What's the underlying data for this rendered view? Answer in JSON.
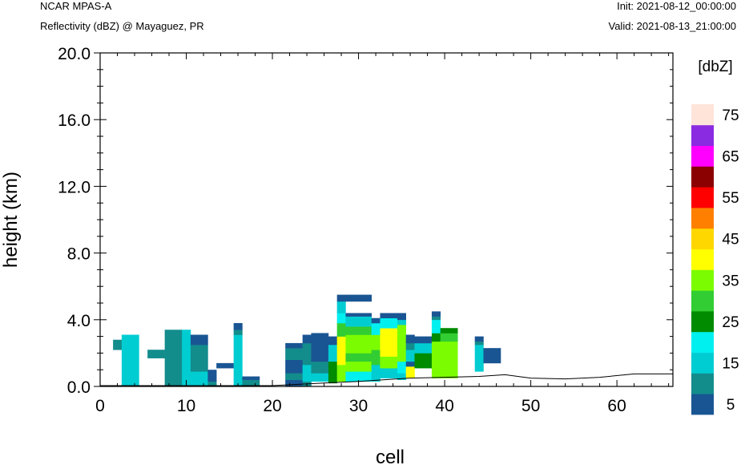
{
  "header": {
    "model": "NCAR MPAS-A",
    "field": "Reflectivity (dBZ) @ Mayaguez, PR",
    "init": "Init: 2021-08-12_00:00:00",
    "valid": "Valid: 2021-08-13_21:00:00"
  },
  "chart_data": {
    "type": "heatmap",
    "xlabel": "cell",
    "ylabel": "height (km)",
    "xlim": [
      0,
      66.5
    ],
    "ylim": [
      0,
      20
    ],
    "x_ticks": [
      "0",
      "10",
      "20",
      "30",
      "40",
      "50",
      "60"
    ],
    "y_ticks": [
      "0.0",
      "4.0",
      "8.0",
      "12.0",
      "16.0",
      "20.0"
    ],
    "colorbar": {
      "title": "[dbZ]",
      "levels": [
        5,
        10,
        15,
        20,
        25,
        30,
        35,
        40,
        45,
        50,
        55,
        60,
        65,
        70,
        75
      ],
      "colors": [
        "#1a5593",
        "#138c8c",
        "#00cdd2",
        "#00f0f0",
        "#008b00",
        "#32cd32",
        "#7cfc00",
        "#ffff00",
        "#ffd700",
        "#ff8000",
        "#ff0000",
        "#8b0000",
        "#ff00ff",
        "#8a2be2",
        "#ffe4da"
      ],
      "labels": [
        "5",
        "15",
        "25",
        "35",
        "45",
        "55",
        "65",
        "75"
      ]
    },
    "cells": [
      [
        1.5,
        2.5,
        2.2,
        2.8,
        1
      ],
      [
        2.5,
        4.5,
        0,
        3.1,
        2
      ],
      [
        5.5,
        7.5,
        1.7,
        2.2,
        1
      ],
      [
        7.5,
        9.5,
        0,
        3.1,
        1
      ],
      [
        7.5,
        9.5,
        3.1,
        3.4,
        1
      ],
      [
        9.5,
        10.5,
        0,
        3.4,
        2
      ],
      [
        10.5,
        12.5,
        0,
        0.9,
        2
      ],
      [
        10.5,
        12.5,
        0.9,
        2.5,
        1
      ],
      [
        10.5,
        12.5,
        2.5,
        3.1,
        0
      ],
      [
        12.5,
        13.5,
        0,
        0.3,
        1
      ],
      [
        12.5,
        13.5,
        0.3,
        1.0,
        0
      ],
      [
        13.5,
        15.5,
        1.1,
        1.4,
        0
      ],
      [
        15.5,
        16.5,
        0,
        3.1,
        2
      ],
      [
        15.5,
        16.5,
        3.1,
        3.4,
        1
      ],
      [
        15.5,
        16.5,
        3.4,
        3.8,
        0
      ],
      [
        16.5,
        18.5,
        0,
        0.4,
        1
      ],
      [
        16.5,
        18.5,
        0.4,
        0.6,
        0
      ],
      [
        21.5,
        23.5,
        0,
        0.4,
        0
      ],
      [
        21.5,
        23.5,
        0.4,
        0.8,
        1
      ],
      [
        21.5,
        23.5,
        0.8,
        1.6,
        0
      ],
      [
        21.5,
        23.5,
        1.6,
        2.3,
        1
      ],
      [
        21.5,
        23.5,
        2.3,
        2.6,
        0
      ],
      [
        23.5,
        24.5,
        0,
        0.3,
        1
      ],
      [
        23.5,
        24.5,
        0.3,
        1.3,
        2
      ],
      [
        23.5,
        24.5,
        1.3,
        2.6,
        1
      ],
      [
        23.5,
        24.5,
        2.6,
        3.1,
        0
      ],
      [
        24.5,
        26.5,
        0.3,
        0.8,
        2
      ],
      [
        24.5,
        26.5,
        0.8,
        1.5,
        1
      ],
      [
        24.5,
        26.5,
        1.5,
        3.2,
        0
      ],
      [
        26.5,
        27.5,
        0.2,
        1.5,
        4
      ],
      [
        26.5,
        27.5,
        1.5,
        2.5,
        2
      ],
      [
        26.5,
        27.5,
        2.5,
        3.0,
        0
      ],
      [
        27.5,
        28.5,
        0.3,
        1.3,
        6
      ],
      [
        27.5,
        28.5,
        1.3,
        3.0,
        7
      ],
      [
        27.5,
        28.5,
        3.0,
        3.8,
        5
      ],
      [
        27.5,
        28.5,
        3.8,
        4.4,
        3
      ],
      [
        27.5,
        28.5,
        4.4,
        5.1,
        2
      ],
      [
        27.5,
        28.5,
        5.1,
        5.5,
        0
      ],
      [
        28.5,
        31.5,
        0.3,
        0.9,
        3
      ],
      [
        28.5,
        31.5,
        0.9,
        1.5,
        6
      ],
      [
        28.5,
        31.5,
        1.5,
        2.0,
        5
      ],
      [
        28.5,
        31.5,
        2.0,
        3.1,
        6
      ],
      [
        28.5,
        31.5,
        3.1,
        3.6,
        5
      ],
      [
        28.5,
        31.5,
        3.6,
        4.2,
        2
      ],
      [
        28.5,
        31.5,
        4.2,
        4.4,
        0
      ],
      [
        28.5,
        31.5,
        5.1,
        5.5,
        0
      ],
      [
        31.5,
        32.5,
        0.3,
        1.3,
        2
      ],
      [
        31.5,
        32.5,
        1.3,
        2.2,
        5
      ],
      [
        31.5,
        32.5,
        2.2,
        3.1,
        6
      ],
      [
        31.5,
        32.5,
        3.1,
        3.8,
        3
      ],
      [
        31.5,
        32.5,
        3.8,
        4.1,
        0
      ],
      [
        32.5,
        34.5,
        0.5,
        1.1,
        2
      ],
      [
        32.5,
        34.5,
        1.1,
        1.8,
        6
      ],
      [
        32.5,
        34.5,
        1.8,
        3.5,
        7
      ],
      [
        32.5,
        34.5,
        3.5,
        4.1,
        3
      ],
      [
        32.5,
        34.5,
        4.1,
        4.4,
        0
      ],
      [
        34.5,
        35.5,
        0.4,
        0.8,
        2
      ],
      [
        34.5,
        35.5,
        0.8,
        1.5,
        3
      ],
      [
        34.5,
        35.5,
        1.5,
        3.7,
        6
      ],
      [
        34.5,
        35.5,
        3.7,
        4.0,
        2
      ],
      [
        34.5,
        35.5,
        4.0,
        4.4,
        0
      ],
      [
        35.5,
        36.5,
        0.5,
        1.2,
        7
      ],
      [
        35.5,
        36.5,
        1.2,
        1.5,
        0
      ],
      [
        35.5,
        36.5,
        1.5,
        2.2,
        2
      ],
      [
        35.5,
        36.5,
        2.2,
        2.6,
        1
      ],
      [
        35.5,
        36.5,
        2.6,
        3.1,
        0
      ],
      [
        36.5,
        38.5,
        1.1,
        2.0,
        4
      ],
      [
        36.5,
        38.5,
        2.0,
        2.6,
        2
      ],
      [
        36.5,
        38.5,
        2.6,
        3.0,
        0
      ],
      [
        38.5,
        39.5,
        0.5,
        1.5,
        6
      ],
      [
        38.5,
        39.5,
        1.5,
        2.7,
        6
      ],
      [
        38.5,
        39.5,
        2.7,
        3.2,
        4
      ],
      [
        38.5,
        39.5,
        3.2,
        4.0,
        3
      ],
      [
        38.5,
        39.5,
        4.0,
        4.2,
        1
      ],
      [
        38.5,
        39.5,
        4.2,
        4.5,
        0
      ],
      [
        39.5,
        41.5,
        0.5,
        2.7,
        6
      ],
      [
        39.5,
        41.5,
        2.7,
        3.2,
        5
      ],
      [
        39.5,
        41.5,
        3.2,
        3.5,
        4
      ],
      [
        43.5,
        44.5,
        0.9,
        2.5,
        2
      ],
      [
        43.5,
        44.5,
        2.5,
        2.7,
        1
      ],
      [
        43.5,
        44.5,
        2.7,
        3.0,
        0
      ],
      [
        44.5,
        46.5,
        1.4,
        2.3,
        0
      ]
    ],
    "terrain": [
      [
        0,
        0.05
      ],
      [
        20,
        0.05
      ],
      [
        26,
        0.2
      ],
      [
        30,
        0.3
      ],
      [
        36,
        0.5
      ],
      [
        40,
        0.55
      ],
      [
        44,
        0.6
      ],
      [
        47,
        0.7
      ],
      [
        50,
        0.5
      ],
      [
        54,
        0.45
      ],
      [
        58,
        0.55
      ],
      [
        62,
        0.75
      ],
      [
        66.5,
        0.75
      ]
    ]
  }
}
